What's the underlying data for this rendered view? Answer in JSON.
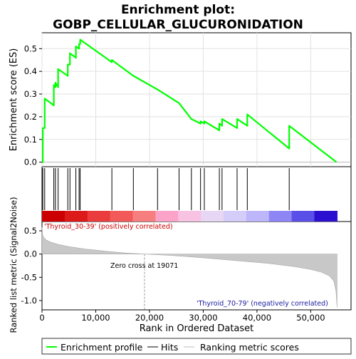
{
  "chart_data": {
    "type": "line",
    "title_line1": "Enrichment plot:",
    "title_line2": "GOBP_CELLULAR_GLUCURONIDATION",
    "es_panel": {
      "ylabel": "Enrichment score (ES)",
      "ylim": [
        -0.02,
        0.57
      ],
      "yticks": [
        0.0,
        0.1,
        0.2,
        0.3,
        0.4,
        0.5
      ],
      "ytick_labels": [
        "0.0",
        "0.1",
        "0.2",
        "0.3",
        "0.4",
        "0.5"
      ],
      "series": [
        {
          "name": "Enrichment profile",
          "color": "#00ff00",
          "x": [
            0,
            150,
            150,
            500,
            500,
            2200,
            2200,
            2500,
            2500,
            3000,
            3000,
            4800,
            4800,
            5200,
            5200,
            6300,
            6300,
            6900,
            6900,
            7100,
            7100,
            13000,
            13000,
            17000,
            17000,
            21500,
            21500,
            25500,
            25500,
            27800,
            27800,
            29500,
            29500,
            30200,
            30200,
            33000,
            33000,
            33500,
            33500,
            36300,
            36300,
            38200,
            38200,
            46000,
            46000,
            54800
          ],
          "y": [
            0.0,
            0.0,
            0.15,
            0.15,
            0.28,
            0.25,
            0.34,
            0.33,
            0.35,
            0.33,
            0.41,
            0.38,
            0.43,
            0.43,
            0.48,
            0.46,
            0.51,
            0.5,
            0.52,
            0.52,
            0.54,
            0.44,
            0.45,
            0.38,
            0.38,
            0.32,
            0.32,
            0.26,
            0.26,
            0.19,
            0.19,
            0.17,
            0.18,
            0.17,
            0.18,
            0.14,
            0.17,
            0.16,
            0.19,
            0.15,
            0.19,
            0.16,
            0.21,
            0.06,
            0.16,
            0.0
          ]
        }
      ]
    },
    "hits": [
      150,
      500,
      2200,
      2500,
      3000,
      4800,
      5200,
      6300,
      6900,
      7100,
      13000,
      17000,
      21500,
      25500,
      27800,
      29500,
      30200,
      33000,
      33500,
      36300,
      38200,
      46000
    ],
    "heatmap_colors": [
      "#cc0000",
      "#dd1a1a",
      "#ea3c3c",
      "#f25a5a",
      "#f77e7e",
      "#fba3c8",
      "#f8c2e2",
      "#e8d6f5",
      "#d4cdfa",
      "#bdb6fa",
      "#8f86f5",
      "#5a4fe8",
      "#2b10d0"
    ],
    "metric_panel": {
      "ylabel": "Ranked list metric (Signal2Noise)",
      "ylim": [
        -1.2,
        0.7
      ],
      "yticks": [
        -1.0,
        -0.5,
        0.0,
        0.5
      ],
      "ytick_labels": [
        "-1.0",
        "-0.5",
        "0.0",
        "0.5"
      ],
      "positive_label": "'Thyroid_30-39' (positively correlated)",
      "negative_label": "'Thyroid_70-79' (negatively correlated)",
      "zero_cross_label": "Zero cross at 19071",
      "zero_cross": 19071,
      "curve_x": [
        0,
        100,
        300,
        700,
        1500,
        3000,
        5000,
        8000,
        12000,
        16000,
        19071,
        24000,
        30000,
        36000,
        42000,
        47000,
        50000,
        52000,
        53500,
        54300,
        54700,
        54900
      ],
      "curve_y": [
        0.58,
        0.42,
        0.36,
        0.31,
        0.26,
        0.21,
        0.16,
        0.11,
        0.06,
        0.02,
        0.0,
        -0.03,
        -0.08,
        -0.14,
        -0.2,
        -0.27,
        -0.33,
        -0.39,
        -0.47,
        -0.58,
        -0.8,
        -1.15
      ]
    },
    "xlabel": "Rank in Ordered Dataset",
    "xlim": [
      0,
      57500
    ],
    "xticks": [
      0,
      10000,
      20000,
      30000,
      40000,
      50000
    ],
    "xtick_labels": [
      "0",
      "10,000",
      "20,000",
      "30,000",
      "40,000",
      "50,000"
    ],
    "legend": {
      "items": [
        {
          "label": "Enrichment profile",
          "color": "#00ff00"
        },
        {
          "label": "Hits",
          "color": "#000000"
        },
        {
          "label": "Ranking metric scores",
          "color": "#bbbbbb"
        }
      ],
      "placement": "bottom"
    }
  }
}
